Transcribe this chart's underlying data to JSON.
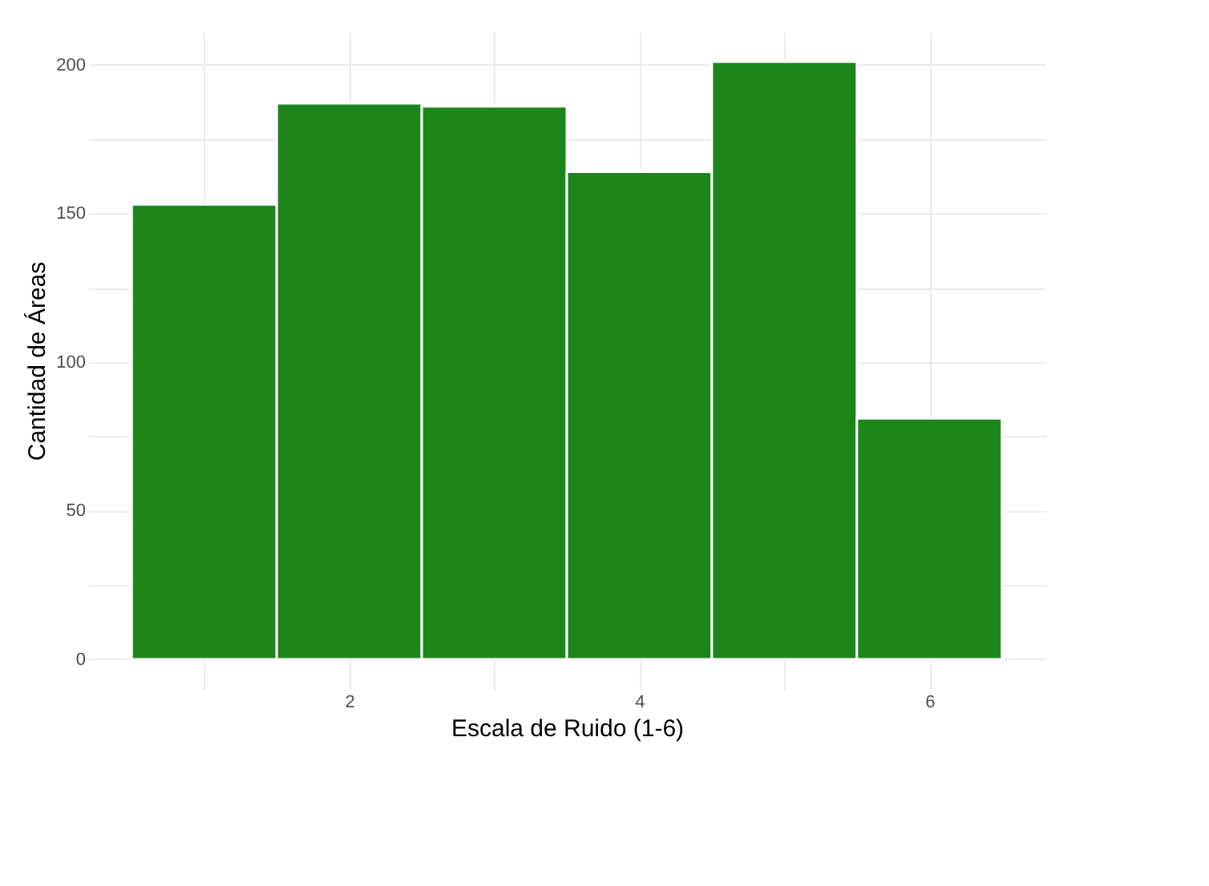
{
  "chart_data": {
    "type": "histogram",
    "xlabel": "Escala de Ruido (1-6)",
    "ylabel": "Cantidad de Áreas",
    "bins": [
      0.5,
      1.5,
      2.5,
      3.5,
      4.5,
      5.5,
      6.5
    ],
    "values": [
      153,
      187,
      186,
      164,
      201,
      81
    ],
    "color": "#1c861c",
    "xlim": [
      0.2,
      6.8
    ],
    "xticks": [
      {
        "value": 1,
        "label": null
      },
      2,
      {
        "value": 3,
        "label": null
      },
      4,
      {
        "value": 5,
        "label": null
      },
      6
    ],
    "ylim": [
      -10,
      211
    ],
    "yticks": [
      0,
      {
        "value": 25,
        "label": null
      },
      50,
      {
        "value": 75,
        "label": null
      },
      100,
      {
        "value": 125,
        "label": null
      },
      150,
      {
        "value": 175,
        "label": null
      },
      200
    ],
    "grid": true
  }
}
